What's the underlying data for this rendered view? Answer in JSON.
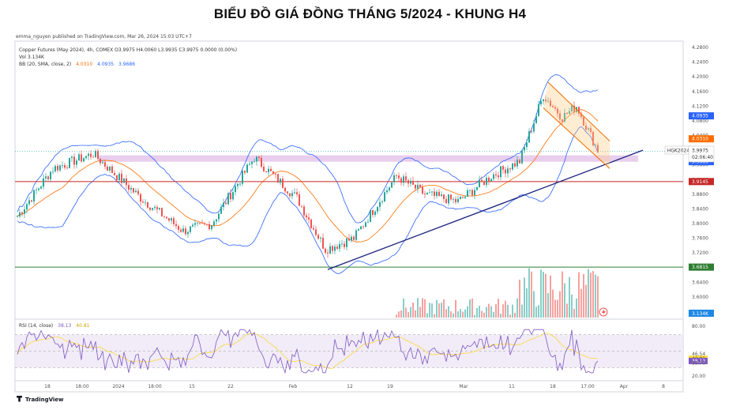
{
  "page_title": "BIỂU ĐỒ GIÁ ĐỒNG THÁNG 5/2024 - KHUNG H4",
  "publisher_line": "emma_nguyen published on TradingView.com, Mar 26, 2024 15:03 UTC+7",
  "legend": {
    "line1": "Copper Futures (May 2024), 4h, COMEX  O3.9975  H4.0060  L3.9935  C3.9975  0.0000 (0.00%)",
    "line2": "Vol  3.134K",
    "bb_prefix": "BB (20, SMA, close, 2)",
    "bb_basis": "4.0310",
    "bb_upper": "4.0935",
    "bb_lower": "3.9686"
  },
  "rsi_legend": {
    "prefix": "RSI (14, close)",
    "rsi": "38.13",
    "ma": "40.81"
  },
  "brand": "TradingView",
  "ticker_tag": "HGK2024",
  "price_tag": "3.9975",
  "countdown_tag": "02:06:40",
  "colors": {
    "up": "#26a69a",
    "down": "#ef5350",
    "bb_band": "#2962ff",
    "bb_basis": "#ff6d00",
    "support": "#c62828",
    "bottom_line": "#2e7d32",
    "trendline": "#1a237e",
    "zone": "#e1bee7",
    "rsi_line": "#7e57c2",
    "rsi_ma": "#fdd835"
  },
  "chart_data": {
    "type": "candlestick",
    "price_ticks": [
      "4.2800",
      "4.2400",
      "4.2000",
      "4.1600",
      "4.1200",
      "4.0800",
      "4.0400",
      "4.0000",
      "3.9600",
      "3.9200",
      "3.8800",
      "3.8400",
      "3.8000",
      "3.7600",
      "3.7200",
      "3.6800",
      "3.6400",
      "3.6000"
    ],
    "tags": [
      {
        "text": "4.0935",
        "value": 4.0935,
        "color": "#2962ff"
      },
      {
        "text": "4.0310",
        "value": 4.031,
        "color": "#ff6d00"
      },
      {
        "text": "3.9686",
        "value": 3.9686,
        "color": "#2962ff"
      },
      {
        "text": "3.9145",
        "value": 3.9145,
        "color": "#c62828"
      },
      {
        "text": "3.6815",
        "value": 3.6815,
        "color": "#2e7d32"
      }
    ],
    "vol_tag": "3.134K",
    "support_line": 3.9145,
    "bottom_line": 3.6815,
    "zone": [
      3.9686,
      3.986
    ],
    "rsi_ticks": [
      "80.00",
      "46.54",
      "40.81",
      "38.13",
      "35.70",
      "20.00"
    ],
    "rsi_levels": [
      70,
      50,
      30
    ],
    "x_labels": [
      "18",
      "18:00",
      "2024",
      "18:00",
      "15",
      "22",
      "Feb",
      "12",
      "19",
      "Mar",
      "11",
      "18",
      "17:00",
      "Apr",
      "8"
    ],
    "waypoints": [
      {
        "bar": 0,
        "price": 3.82
      },
      {
        "bar": 15,
        "price": 3.95
      },
      {
        "bar": 32,
        "price": 3.99
      },
      {
        "bar": 52,
        "price": 3.87
      },
      {
        "bar": 70,
        "price": 3.78
      },
      {
        "bar": 82,
        "price": 3.8
      },
      {
        "bar": 100,
        "price": 3.98
      },
      {
        "bar": 118,
        "price": 3.87
      },
      {
        "bar": 130,
        "price": 3.73
      },
      {
        "bar": 142,
        "price": 3.76
      },
      {
        "bar": 160,
        "price": 3.93
      },
      {
        "bar": 172,
        "price": 3.88
      },
      {
        "bar": 186,
        "price": 3.86
      },
      {
        "bar": 200,
        "price": 3.93
      },
      {
        "bar": 212,
        "price": 3.97
      },
      {
        "bar": 222,
        "price": 4.15
      },
      {
        "bar": 230,
        "price": 4.09
      },
      {
        "bar": 236,
        "price": 4.12
      },
      {
        "bar": 245,
        "price": 4.0
      }
    ],
    "trendline": [
      {
        "bar": 131,
        "price": 3.675
      },
      {
        "bar": 264,
        "price": 4.0
      }
    ],
    "channel_upper": [
      {
        "bar": 224,
        "price": 4.185
      },
      {
        "bar": 250,
        "price": 4.025
      }
    ],
    "channel_lower": [
      {
        "bar": 222,
        "price": 4.115
      },
      {
        "bar": 250,
        "price": 3.95
      }
    ]
  }
}
